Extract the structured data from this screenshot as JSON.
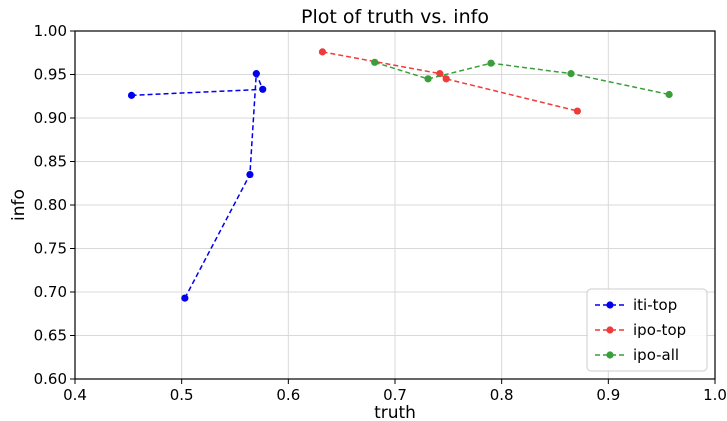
{
  "chart_data": {
    "type": "line",
    "title": "Plot of truth vs. info",
    "xlabel": "truth",
    "ylabel": "info",
    "xlim": [
      0.4,
      1.0
    ],
    "ylim": [
      0.6,
      1.0
    ],
    "xticks": [
      "0.4",
      "0.5",
      "0.6",
      "0.7",
      "0.8",
      "0.9",
      "1.0"
    ],
    "yticks": [
      "0.60",
      "0.65",
      "0.70",
      "0.75",
      "0.80",
      "0.85",
      "0.90",
      "0.95",
      "1.00"
    ],
    "grid": true,
    "legend_position": "lower-right",
    "series": [
      {
        "name": "iti-top",
        "color": "#0000ee",
        "x": [
          0.503,
          0.564,
          0.57,
          0.576,
          0.453
        ],
        "y": [
          0.693,
          0.835,
          0.951,
          0.933,
          0.926
        ]
      },
      {
        "name": "ipo-top",
        "color": "#ee3b3b",
        "x": [
          0.632,
          0.742,
          0.748,
          0.871
        ],
        "y": [
          0.976,
          0.951,
          0.945,
          0.908
        ]
      },
      {
        "name": "ipo-all",
        "color": "#3a9e3a",
        "x": [
          0.681,
          0.731,
          0.79,
          0.865,
          0.957
        ],
        "y": [
          0.964,
          0.945,
          0.963,
          0.951,
          0.927
        ]
      }
    ]
  }
}
